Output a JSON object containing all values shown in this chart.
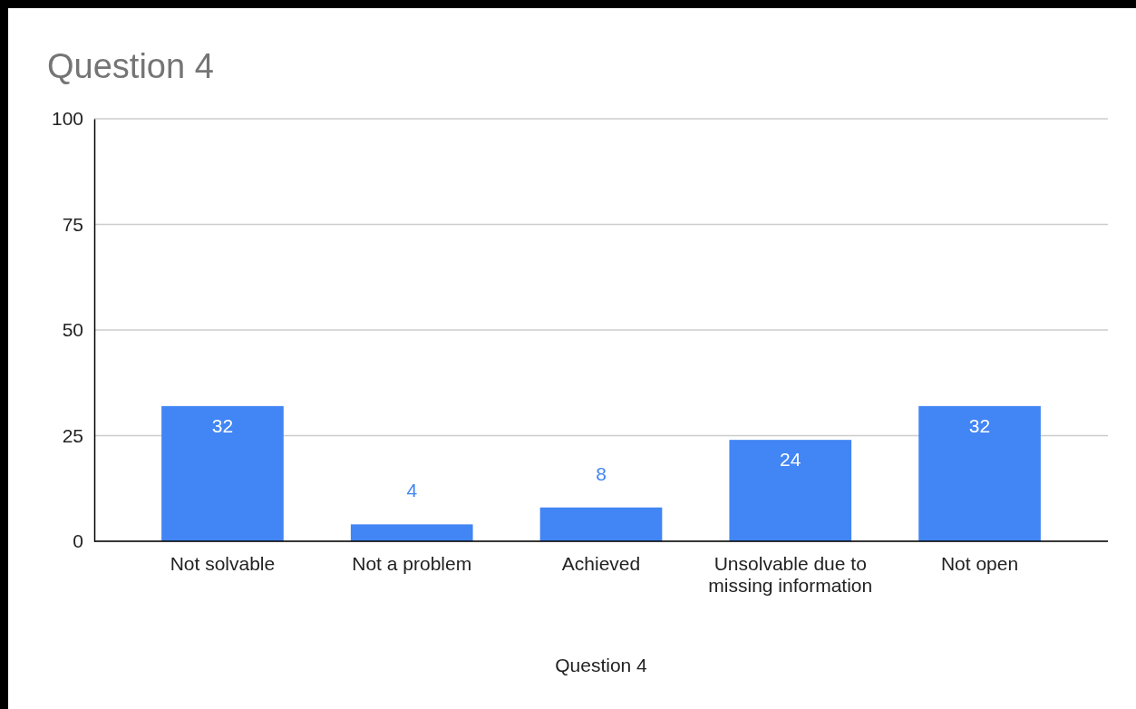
{
  "chart_data": {
    "type": "bar",
    "title": "Question 4",
    "xlabel": "Question 4",
    "categories": [
      "Not solvable",
      "Not a problem",
      "Achieved",
      "Unsolvable due to missing information",
      "Not open"
    ],
    "values": [
      32,
      4,
      8,
      24,
      32
    ],
    "color": "#4285f4",
    "ylim": [
      0,
      100
    ],
    "yticks": [
      0,
      25,
      50,
      75,
      100
    ],
    "grid": "y",
    "data_labels": true
  }
}
